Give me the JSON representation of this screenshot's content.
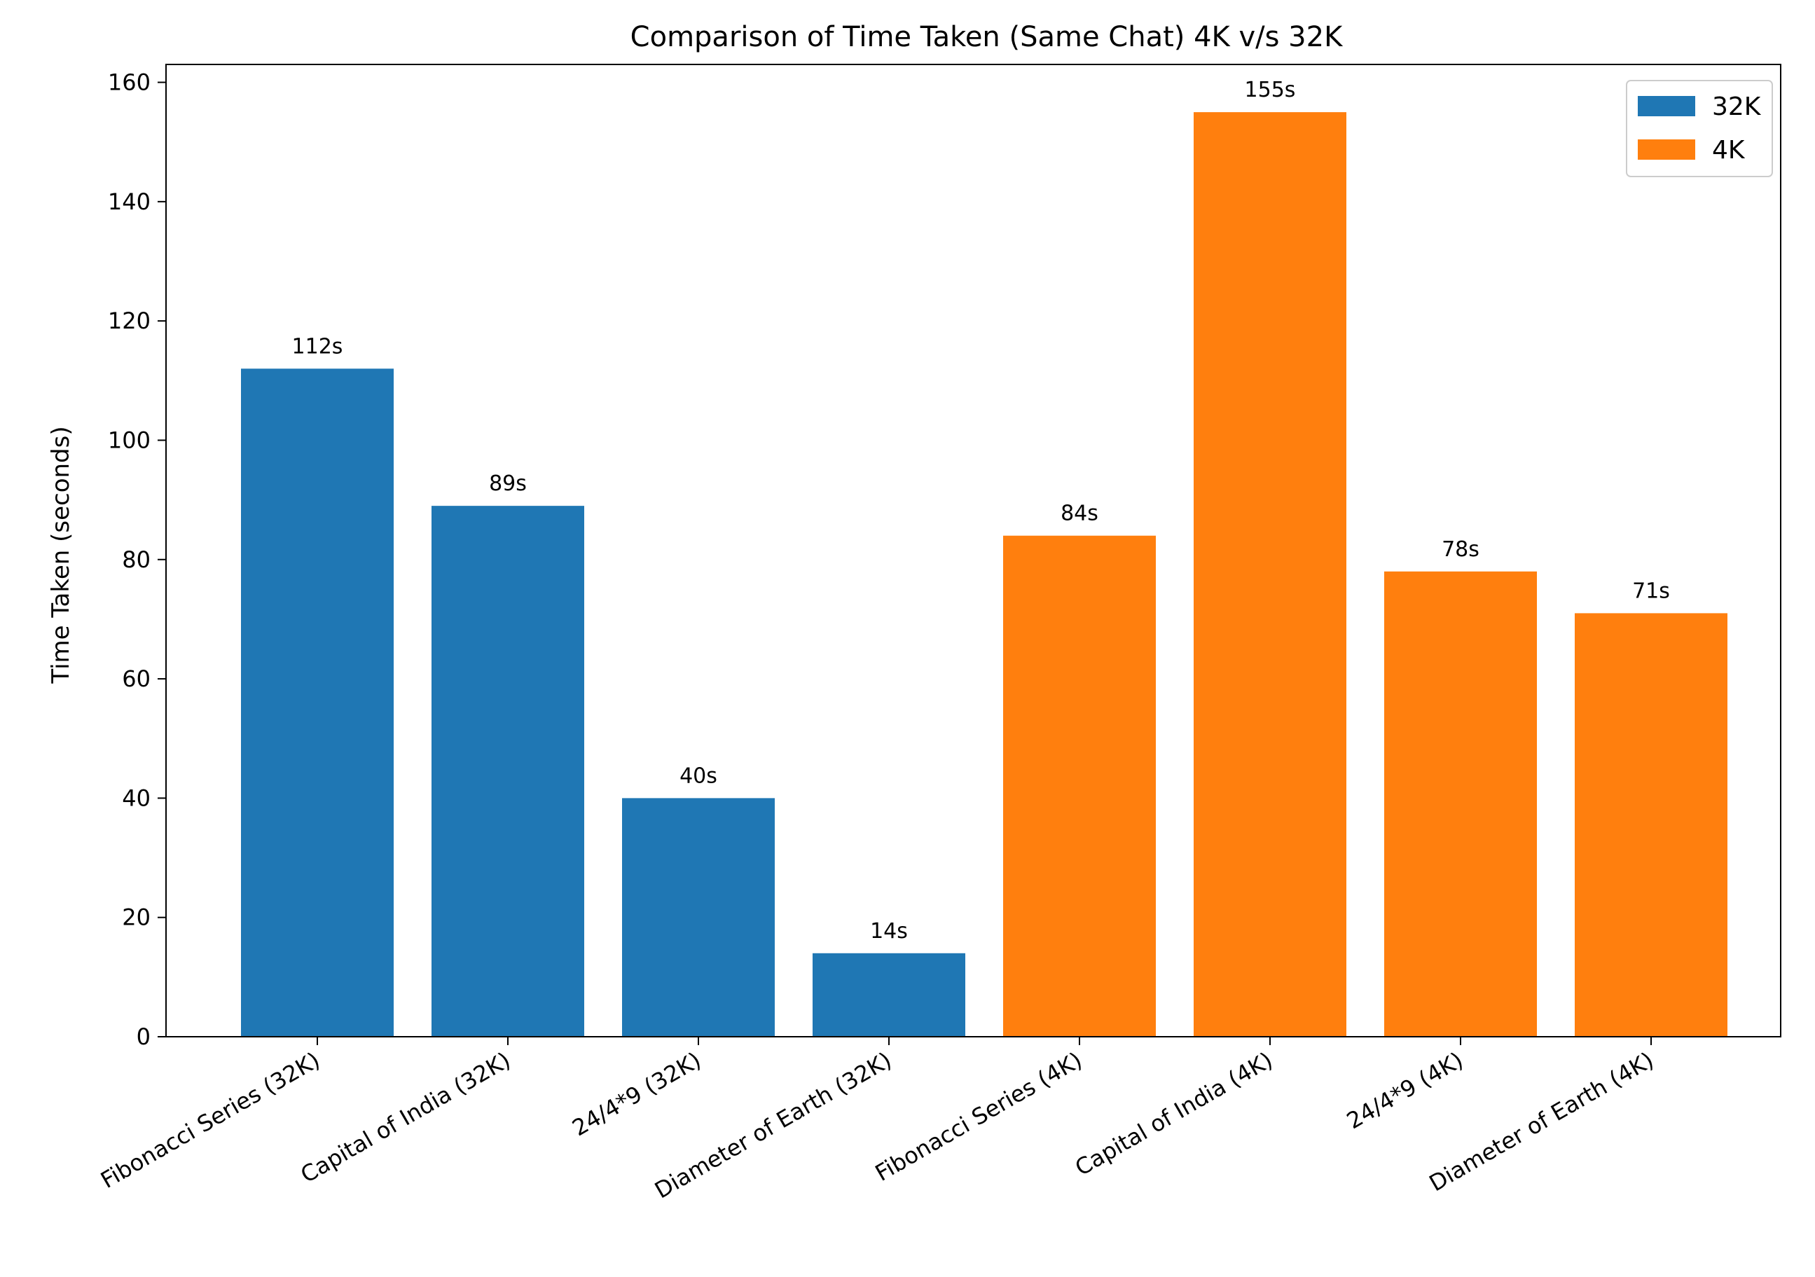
{
  "chart_data": {
    "type": "bar",
    "title": "Comparison of Time Taken (Same Chat) 4K v/s 32K",
    "xlabel": "",
    "ylabel": "Time Taken (seconds)",
    "ylim": [
      0,
      163
    ],
    "yticks": [
      0,
      20,
      40,
      60,
      80,
      100,
      120,
      140,
      160
    ],
    "categories": [
      "Fibonacci Series (32K)",
      "Capital of India (32K)",
      "24/4*9 (32K)",
      "Diameter of Earth (32K)",
      "Fibonacci Series (4K)",
      "Capital of India (4K)",
      "24/4*9 (4K)",
      "Diameter of Earth (4K)"
    ],
    "values": [
      112,
      89,
      40,
      14,
      84,
      155,
      78,
      71
    ],
    "bar_labels": [
      "112s",
      "89s",
      "40s",
      "14s",
      "84s",
      "155s",
      "78s",
      "71s"
    ],
    "bar_series": [
      "32K",
      "32K",
      "32K",
      "32K",
      "4K",
      "4K",
      "4K",
      "4K"
    ],
    "series": [
      {
        "name": "32K",
        "color": "#1f77b4"
      },
      {
        "name": "4K",
        "color": "#ff7f0e"
      }
    ],
    "legend_position": "top-right",
    "grid": false
  }
}
